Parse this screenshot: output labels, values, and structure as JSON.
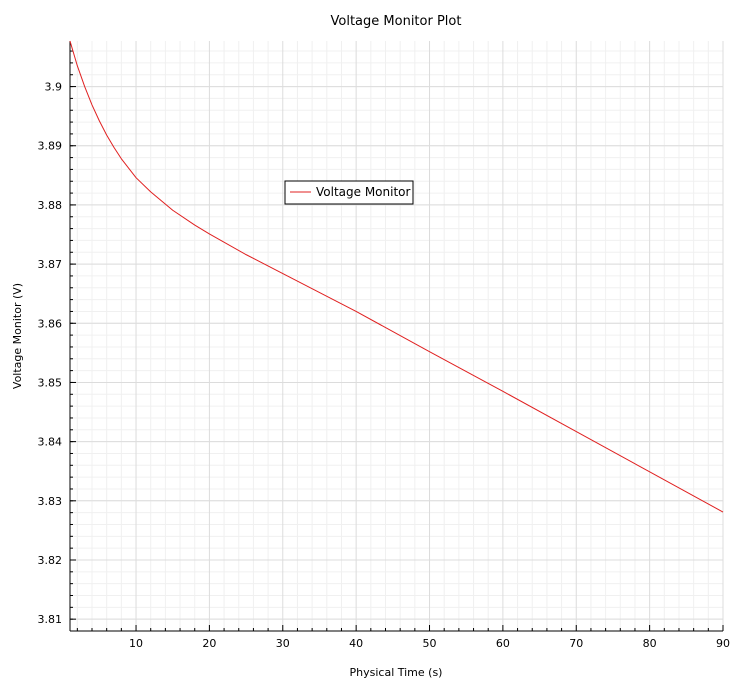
{
  "chart_data": {
    "type": "line",
    "title": "Voltage Monitor Plot",
    "xlabel": "Physical Time (s)",
    "ylabel": "Voltage Monitor (V)",
    "xlim": [
      1,
      90
    ],
    "ylim": [
      3.808,
      3.9077
    ],
    "x_ticks": [
      10,
      20,
      30,
      40,
      50,
      60,
      70,
      80,
      90
    ],
    "x_tick_labels": [
      "10",
      "20",
      "30",
      "40",
      "50",
      "60",
      "70",
      "80",
      "90"
    ],
    "y_ticks": [
      3.81,
      3.82,
      3.83,
      3.84,
      3.85,
      3.86,
      3.87,
      3.88,
      3.89,
      3.9
    ],
    "y_tick_labels": [
      "3.81",
      "3.82",
      "3.83",
      "3.84",
      "3.85",
      "3.86",
      "3.87",
      "3.88",
      "3.89",
      "3.9"
    ],
    "grid": true,
    "legend_position": "upper-center",
    "series": [
      {
        "name": "Voltage Monitor",
        "color": "#e02020",
        "x": [
          1,
          2,
          3,
          4,
          5,
          6,
          7,
          8,
          10,
          12,
          15,
          18,
          20,
          25,
          30,
          40,
          50,
          60,
          70,
          80,
          90
        ],
        "y": [
          3.9077,
          3.9035,
          3.9,
          3.8969,
          3.8942,
          3.8918,
          3.8897,
          3.8878,
          3.8846,
          3.8822,
          3.8791,
          3.8766,
          3.8751,
          3.8716,
          3.8684,
          3.862,
          3.8552,
          3.8485,
          3.8417,
          3.8349,
          3.8281
        ]
      }
    ]
  }
}
